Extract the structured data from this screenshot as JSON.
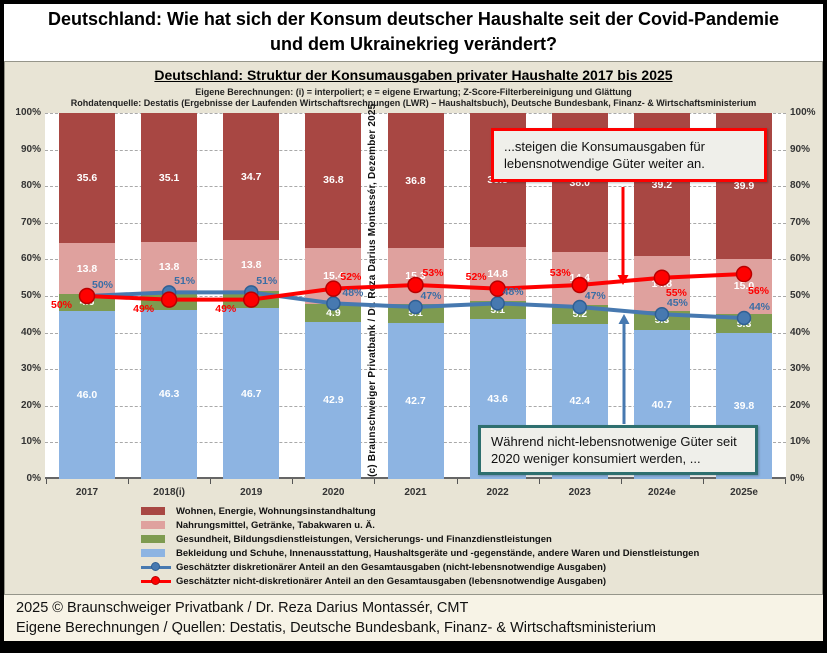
{
  "header": {
    "title_line1": "Deutschland: Wie hat sich der Konsum deutscher Haushalte seit der Covid-Pandemie",
    "title_line2": "und dem Ukrainekrieg verändert?"
  },
  "chart": {
    "title": "Deutschland: Struktur der Konsumausgaben privater Haushalte 2017 bis 2025",
    "subtitle1": "Eigene Berechnungen: (i) = interpoliert; e = eigene Erwartung; Z-Score-Filterbereinigung und Glättung",
    "subtitle2": "Rohdatenquelle: Destatis (Ergebnisse der Laufenden Wirtschaftsrechnungen (LWR) – Haushaltsbuch), Deutsche Bundesbank, Finanz- & Wirtschaftsministerium",
    "copyright_vertical": "(c) Braunschweiger Privatbank / Dr. Reza Darius Montassér, Dezember 2025",
    "annotation_top": "...steigen die Konsumausgaben für lebensnotwendige Güter weiter an.",
    "annotation_bottom": "Während nicht-lebensnotwenige Güter seit 2020 weniger konsumiert werden, ..."
  },
  "chart_data": {
    "type": "stacked_bar_with_lines",
    "categories": [
      "2017",
      "2018(i)",
      "2019",
      "2020",
      "2021",
      "2022",
      "2023",
      "2024e",
      "2025e"
    ],
    "series": [
      {
        "id": "wohnen",
        "name": "Wohnen, Energie, Wohnungsinstandhaltung",
        "type": "bar",
        "color": "#A84743",
        "values": [
          35.6,
          35.1,
          34.7,
          36.8,
          36.8,
          36.5,
          38.0,
          39.2,
          39.9
        ]
      },
      {
        "id": "nahrungsmittel",
        "name": "Nahrungsmittel, Getränke, Tabakwaren u. Ä.",
        "type": "bar",
        "color": "#DFA19E",
        "values": [
          13.8,
          13.8,
          13.8,
          15.4,
          15.3,
          14.8,
          14.4,
          14.8,
          15.0
        ]
      },
      {
        "id": "gesundheit",
        "name": "Gesundheit, Bildungsdienstleistungen, Versicherungs- und Finanzdienstleistungen",
        "type": "bar",
        "color": "#7E9B50",
        "values": [
          4.6,
          4.7,
          4.8,
          4.9,
          5.1,
          5.1,
          5.2,
          5.3,
          5.3
        ]
      },
      {
        "id": "bekleidung",
        "name": "Bekleidung und Schuhe, Innenausstattung, Haushaltsgeräte und -gegenstände, andere Waren und Dienstleistungen",
        "type": "bar",
        "color": "#8DB4E2",
        "values": [
          46.0,
          46.3,
          46.7,
          42.9,
          42.7,
          43.6,
          42.4,
          40.7,
          39.8
        ]
      },
      {
        "id": "diskretionaer",
        "name": "Geschätzter diskretionärer Anteil an den Gesamtausgaben (nicht-lebensnotwendige Ausgaben)",
        "type": "line",
        "color": "#4779B0",
        "label_color": "#3A6EA5",
        "marker_edge": "#2F5F93",
        "marker_radius": 6.5,
        "values": [
          50,
          51,
          51,
          48,
          47,
          48,
          47,
          45,
          44
        ],
        "point_labels": [
          "50%",
          "51%",
          "51%",
          "48%",
          "47%",
          "48%",
          "47%",
          "45%",
          "44%"
        ]
      },
      {
        "id": "nicht_diskretionaer",
        "name": "Geschätzter nicht-diskretionärer Anteil an den Gesamtausgaben (lebensnotwendige Ausgaben)",
        "type": "line",
        "color": "#FE0000",
        "label_color": "#FE0000",
        "marker_edge": "#B80000",
        "marker_radius": 7.5,
        "values": [
          50,
          49,
          49,
          52,
          53,
          52,
          53,
          55,
          56
        ],
        "point_labels": [
          "50%",
          "49%",
          "49%",
          "52%",
          "53%",
          "52%",
          "53%",
          "55%",
          "56%"
        ]
      }
    ],
    "stack_order_bottom_to_top": [
      "bekleidung",
      "gesundheit",
      "nahrungsmittel",
      "wohnen"
    ],
    "ylim": [
      0,
      100
    ],
    "yticks": [
      "0%",
      "10%",
      "20%",
      "30%",
      "40%",
      "50%",
      "60%",
      "70%",
      "80%",
      "90%",
      "100%"
    ],
    "grid": true,
    "legend_position": "bottom-left"
  },
  "colors": {
    "chart_background": "#E8E4D5",
    "plot_background": "#FFFFFF",
    "annotation_top_border": "#FE0000",
    "annotation_bottom_border": "#2E6F6F",
    "frame": "#000000"
  },
  "footer": {
    "line1": "2025 © Braunschweiger Privatbank / Dr. Reza Darius Montassér, CMT",
    "line2": "Eigene Berechnungen / Quellen: Destatis, Deutsche Bundesbank, Finanz- & Wirtschaftsministerium"
  }
}
